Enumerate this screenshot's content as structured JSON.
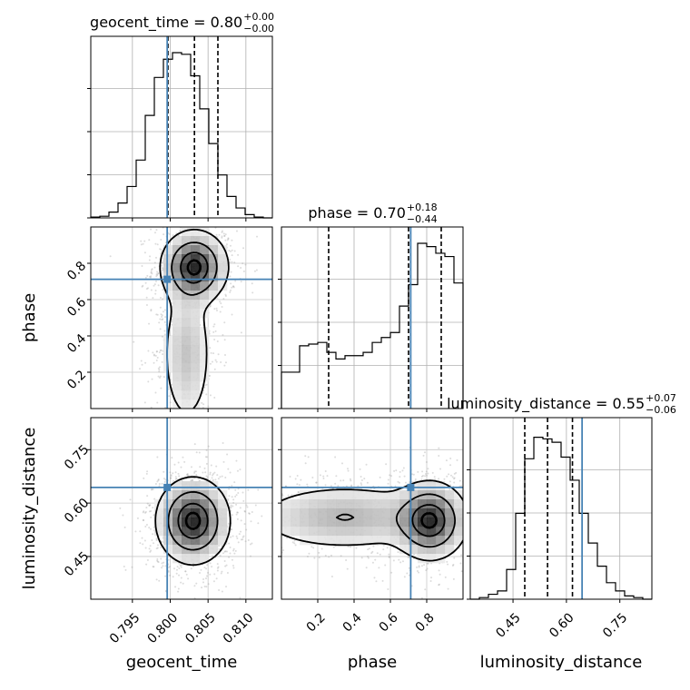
{
  "chart_data": {
    "type": "corner",
    "parameters": [
      "geocent_time",
      "phase",
      "luminosity_distance"
    ],
    "truths": [
      0.7996,
      0.712,
      0.644
    ],
    "truth_color": "#4682b4",
    "ranges": [
      [
        0.7895,
        0.8135
      ],
      [
        0.0,
        1.0
      ],
      [
        0.33,
        0.84
      ]
    ],
    "ticks": {
      "geocent_time": [
        0.795,
        0.8,
        0.805,
        0.81
      ],
      "phase": [
        0.2,
        0.4,
        0.6,
        0.8
      ],
      "luminosity_distance": [
        0.45,
        0.6,
        0.75
      ]
    },
    "tick_labels": {
      "geocent_time": [
        "0.795",
        "0.800",
        "0.805",
        "0.810"
      ],
      "phase": [
        "0.2",
        "0.4",
        "0.6",
        "0.8"
      ],
      "luminosity_distance": [
        "0.45",
        "0.60",
        "0.75"
      ]
    },
    "axis_labels": {
      "geocent_time": "geocent_time",
      "phase": "phase",
      "luminosity_distance": "luminosity_distance"
    },
    "titles": [
      {
        "param": "geocent_time",
        "text": "geocent_time = 0.80",
        "plus": "+0.00",
        "minus": "−0.00"
      },
      {
        "param": "phase",
        "text": "phase = 0.70",
        "plus": "+0.18",
        "minus": "−0.44"
      },
      {
        "param": "luminosity_distance",
        "text": "luminosity_distance = 0.55",
        "plus": "+0.07",
        "minus": "−0.06"
      }
    ],
    "quantiles": {
      "geocent_time": [
        0.7997,
        0.8032,
        0.8063
      ],
      "phase": [
        0.26,
        0.7,
        0.88
      ],
      "luminosity_distance": [
        0.483,
        0.547,
        0.617
      ]
    },
    "marginals": {
      "geocent_time": {
        "edges": [
          0.7895,
          0.7907,
          0.7919,
          0.7931,
          0.7943,
          0.7955,
          0.7967,
          0.7979,
          0.7991,
          0.8003,
          0.8015,
          0.8027,
          0.8039,
          0.8051,
          0.8063,
          0.8075,
          0.8087,
          0.8099,
          0.8111,
          0.8123,
          0.8135
        ],
        "heights": [
          0.005,
          0.01,
          0.035,
          0.09,
          0.19,
          0.35,
          0.62,
          0.85,
          0.96,
          1.0,
          0.99,
          0.86,
          0.66,
          0.45,
          0.26,
          0.13,
          0.06,
          0.02,
          0.005,
          0.0
        ]
      },
      "phase": {
        "edges": [
          0.0,
          0.05,
          0.1,
          0.15,
          0.2,
          0.25,
          0.3,
          0.35,
          0.4,
          0.45,
          0.5,
          0.55,
          0.6,
          0.65,
          0.7,
          0.75,
          0.8,
          0.85,
          0.9,
          0.95,
          1.0
        ],
        "heights": [
          0.22,
          0.22,
          0.38,
          0.39,
          0.4,
          0.34,
          0.3,
          0.32,
          0.32,
          0.34,
          0.4,
          0.43,
          0.46,
          0.62,
          0.75,
          1.0,
          0.98,
          0.94,
          0.92,
          0.76
        ]
      },
      "luminosity_distance": {
        "edges": [
          0.33,
          0.3555,
          0.381,
          0.4065,
          0.432,
          0.4575,
          0.483,
          0.5085,
          0.534,
          0.5595,
          0.585,
          0.6105,
          0.636,
          0.6615,
          0.687,
          0.7125,
          0.738,
          0.7635,
          0.789,
          0.8145,
          0.84
        ],
        "heights": [
          0.0,
          0.01,
          0.03,
          0.05,
          0.18,
          0.52,
          0.85,
          0.98,
          0.97,
          0.95,
          0.86,
          0.72,
          0.52,
          0.34,
          0.2,
          0.1,
          0.05,
          0.02,
          0.01,
          0.0
        ]
      }
    },
    "joint": [
      {
        "x": "geocent_time",
        "y": "phase",
        "modes": [
          {
            "x": 0.8032,
            "y": 0.78,
            "sx": 0.0022,
            "sy": 0.1,
            "w": 1.0
          },
          {
            "x": 0.8022,
            "y": 0.3,
            "sx": 0.0018,
            "sy": 0.22,
            "w": 0.35
          }
        ]
      },
      {
        "x": "geocent_time",
        "y": "luminosity_distance",
        "modes": [
          {
            "x": 0.803,
            "y": 0.55,
            "sx": 0.0024,
            "sy": 0.06,
            "w": 1.0
          }
        ]
      },
      {
        "x": "phase",
        "y": "luminosity_distance",
        "modes": [
          {
            "x": 0.82,
            "y": 0.55,
            "sx": 0.1,
            "sy": 0.055,
            "w": 1.0
          },
          {
            "x": 0.35,
            "y": 0.56,
            "sx": 0.28,
            "sy": 0.05,
            "w": 0.45
          }
        ]
      }
    ],
    "grid": true
  }
}
